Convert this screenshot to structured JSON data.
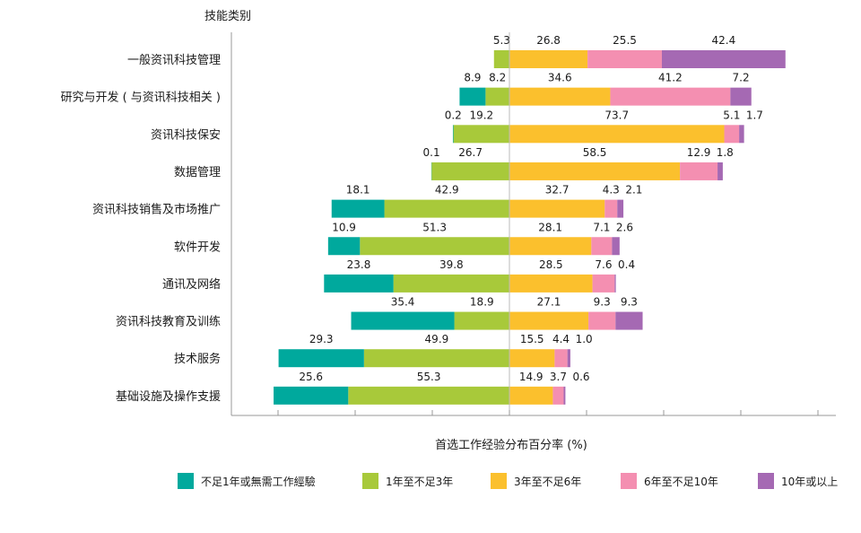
{
  "chart_data": {
    "type": "bar",
    "orientation": "horizontal-diverging",
    "title": "",
    "category_axis_title": "技能类别",
    "xlabel": "首选工作经验分布百分率 (%)",
    "legend_position": "bottom",
    "categories": [
      "一般资讯科技管理",
      "研究与开发 ( 与资讯科技相关 )",
      "资讯科技保安",
      "数据管理",
      "资讯科技销售及市场推广",
      "软件开发",
      "通讯及网络",
      "资讯科技教育及训练",
      "技术服务",
      "基础设施及操作支援"
    ],
    "series": [
      {
        "name": "不足1年或無需工作經驗",
        "color": "#00a99d",
        "side": "left",
        "values": [
          0.0,
          8.9,
          0.2,
          0.1,
          18.1,
          10.9,
          23.8,
          35.4,
          29.3,
          25.6
        ],
        "labels": [
          "",
          "8.9",
          "0.2",
          "0.1",
          "18.1",
          "10.9",
          "23.8",
          "35.4",
          "29.3",
          "25.6"
        ]
      },
      {
        "name": "1年至不足3年",
        "color": "#a8c93a",
        "side": "left",
        "values": [
          5.3,
          8.2,
          19.2,
          26.7,
          42.9,
          51.3,
          39.8,
          18.9,
          49.9,
          55.3
        ],
        "labels": [
          "5.3",
          "8.2",
          "19.2",
          "26.7",
          "42.9",
          "51.3",
          "39.8",
          "18.9",
          "49.9",
          "55.3"
        ]
      },
      {
        "name": "3年至不足6年",
        "color": "#fbc02d",
        "side": "right",
        "values": [
          26.8,
          34.6,
          73.7,
          58.5,
          32.7,
          28.1,
          28.5,
          27.1,
          15.5,
          14.9
        ],
        "labels": [
          "26.8",
          "34.6",
          "73.7",
          "58.5",
          "32.7",
          "28.1",
          "28.5",
          "27.1",
          "15.5",
          "14.9"
        ]
      },
      {
        "name": "6年至不足10年",
        "color": "#f48fb1",
        "side": "right",
        "values": [
          25.5,
          41.2,
          5.1,
          12.9,
          4.3,
          7.1,
          7.6,
          9.3,
          4.4,
          3.7
        ],
        "labels": [
          "25.5",
          "41.2",
          "5.1",
          "12.9",
          "4.3",
          "7.1",
          "7.6",
          "9.3",
          "4.4",
          "3.7"
        ]
      },
      {
        "name": "10年或以上",
        "color": "#a569b3",
        "side": "right",
        "values": [
          42.4,
          7.2,
          1.7,
          1.8,
          2.1,
          2.6,
          0.4,
          9.3,
          1.0,
          0.6
        ],
        "labels": [
          "42.4",
          "7.2",
          "1.7",
          "1.8",
          "2.1",
          "2.6",
          "0.4",
          "9.3",
          "1.0",
          "0.6"
        ]
      }
    ]
  }
}
